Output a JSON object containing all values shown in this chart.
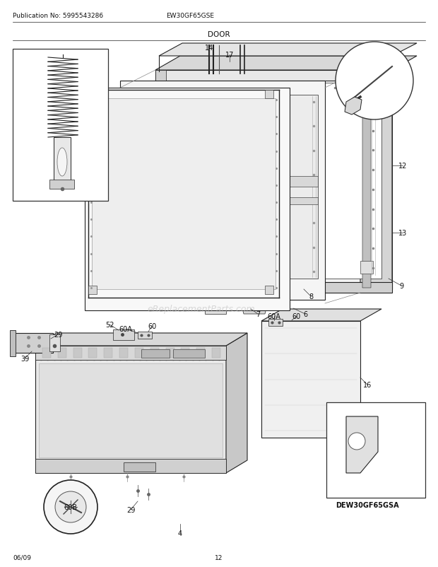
{
  "pub_no": "Publication No: 5995543286",
  "model": "EW30GF65GSE",
  "section": "DOOR",
  "page": "12",
  "date": "06/09",
  "bg_color": "#ffffff",
  "watermark": "eReplacementParts.com",
  "inset_label_20": "DEW30GF65GSA",
  "line_color": "#222222",
  "fill_light": "#f0f0f0",
  "fill_mid": "#d8d8d8",
  "fill_dark": "#c0c0c0"
}
